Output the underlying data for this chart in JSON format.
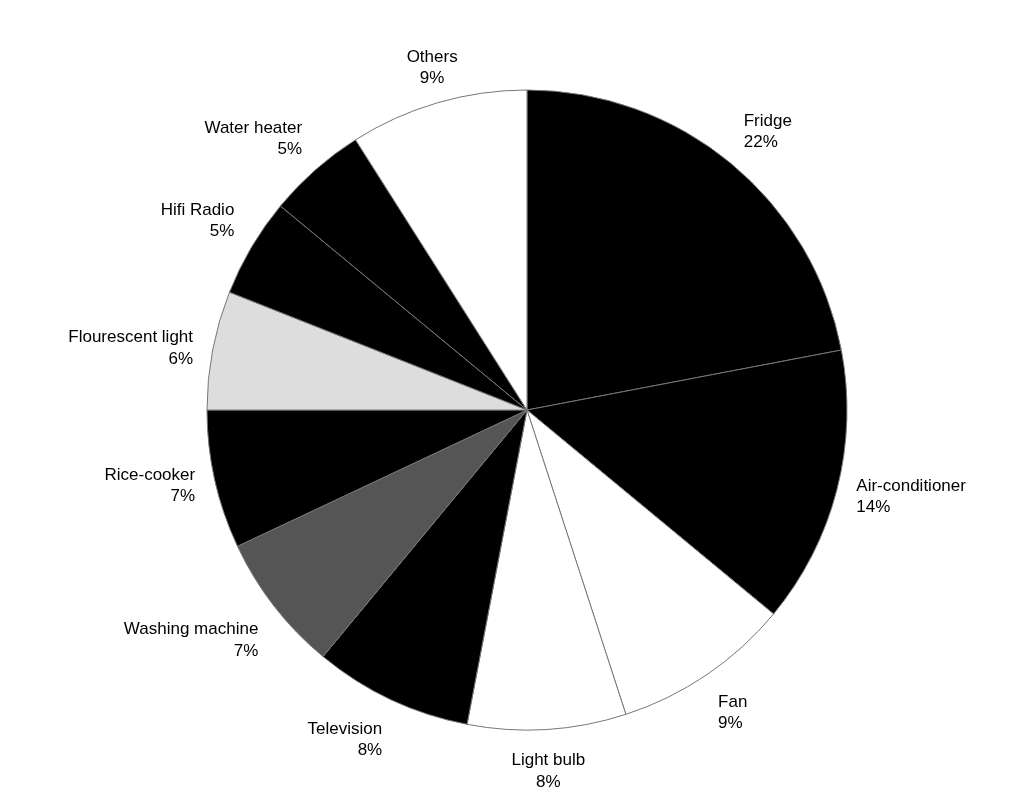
{
  "chart_data": {
    "type": "pie",
    "categories": [
      "Fridge",
      "Air-conditioner",
      "Fan",
      "Light bulb",
      "Television",
      "Washing machine",
      "Rice-cooker",
      "Flourescent light",
      "Hifi Radio",
      "Water heater",
      "Others"
    ],
    "values": [
      22,
      14,
      9,
      8,
      8,
      7,
      7,
      6,
      5,
      5,
      9
    ],
    "value_labels": [
      "22%",
      "14%",
      "9%",
      "8%",
      "8%",
      "7%",
      "7%",
      "6%",
      "5%",
      "5%",
      "9%"
    ],
    "colors": [
      "#000000",
      "#000000",
      "#ffffff",
      "#ffffff",
      "#000000",
      "#555555",
      "#000000",
      "#dddddd",
      "#000000",
      "#000000",
      "#ffffff"
    ]
  }
}
